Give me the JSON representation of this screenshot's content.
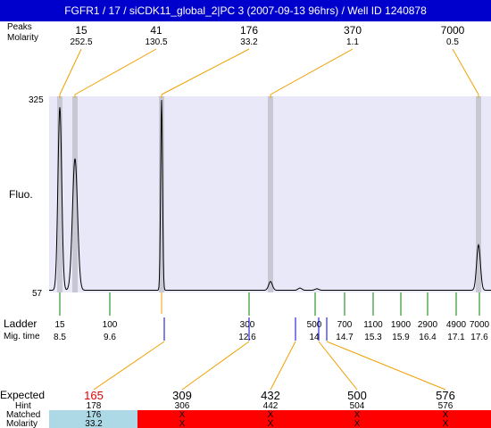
{
  "window": {
    "title": "FGFR1 / 17 / siCDK11_global_2|PC 3 (2007-09-13 96hrs) / Well ID 1240878"
  },
  "labels": {
    "peaks": "Peaks",
    "molarity": "Molarity",
    "fluo": "Fluo.",
    "ladder": "Ladder",
    "mig_time": "Mig. time",
    "expected": "Expected",
    "hint": "Hint",
    "matched": "Matched",
    "molarity_bottom": "Molarity"
  },
  "top_peaks": [
    {
      "size": "15",
      "molarity": "252.5"
    },
    {
      "size": "41",
      "molarity": "130.5"
    },
    {
      "size": "176",
      "molarity": "33.2"
    },
    {
      "size": "370",
      "molarity": "1.1"
    },
    {
      "size": "7000",
      "molarity": "0.5"
    }
  ],
  "ladder": [
    {
      "size": "15",
      "time": "8.5"
    },
    {
      "size": "100",
      "time": "9.6"
    },
    {
      "size": "300",
      "time": "12.6"
    },
    {
      "size": "500",
      "time": "14"
    },
    {
      "size": "700",
      "time": "14.7"
    },
    {
      "size": "1100",
      "time": "15.3"
    },
    {
      "size": "1900",
      "time": "15.9"
    },
    {
      "size": "2900",
      "time": "16.4"
    },
    {
      "size": "4900",
      "time": "17.1"
    },
    {
      "size": "7000",
      "time": "17.6"
    }
  ],
  "expected": [
    {
      "expected": "165",
      "hint": "178",
      "matched": "176",
      "molarity": "33.2",
      "status": "match"
    },
    {
      "expected": "309",
      "hint": "306",
      "matched": "X",
      "molarity": "X",
      "status": "nomatch"
    },
    {
      "expected": "432",
      "hint": "442",
      "matched": "X",
      "molarity": "X",
      "status": "nomatch"
    },
    {
      "expected": "500",
      "hint": "504",
      "matched": "X",
      "molarity": "X",
      "status": "nomatch"
    },
    {
      "expected": "576",
      "hint": "576",
      "matched": "X",
      "molarity": "X",
      "status": "nomatch"
    }
  ],
  "chart_data": {
    "type": "line",
    "ylim": [
      57,
      325
    ],
    "y_ticks": [
      "325",
      "57"
    ],
    "ylabel": "Fluo.",
    "x_ladder_sizes": [
      15,
      100,
      300,
      500,
      700,
      1100,
      1900,
      2900,
      4900,
      7000
    ],
    "peaks": [
      {
        "size": 15,
        "height": 310
      },
      {
        "size": 41,
        "height": 240
      },
      {
        "size": 176,
        "height": 320
      },
      {
        "size": 370,
        "height": 72
      },
      {
        "size": 7000,
        "height": 122
      }
    ]
  },
  "colors": {
    "title_bg": "#0000cc",
    "plot_bg": "#e8e8f8",
    "peak_band": "#c8c8d4",
    "orange": "#f0a000",
    "green": "#008000",
    "blue": "#0000cc",
    "red": "#ff0000",
    "expected_red": "#e00000",
    "matched_bg": "#add8e6"
  }
}
